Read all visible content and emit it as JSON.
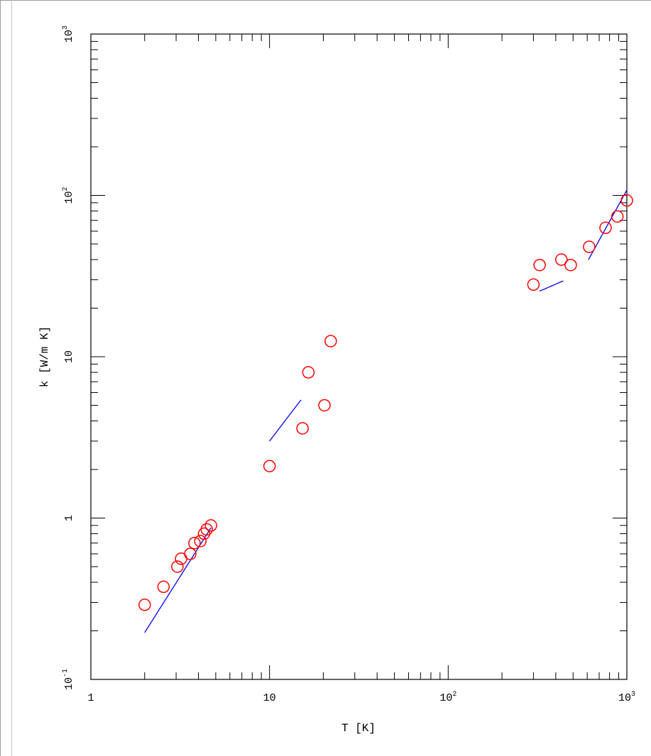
{
  "chart_data": {
    "type": "scatter",
    "xlabel": "T [K]",
    "ylabel": "k [W/m K]",
    "xscale": "log",
    "yscale": "log",
    "xlim": [
      1,
      1000
    ],
    "ylim": [
      0.1,
      1000
    ],
    "grid": false,
    "x_tick_labels": [
      {
        "value": 1,
        "mantissa": "1",
        "exp": ""
      },
      {
        "value": 10,
        "mantissa": "10",
        "exp": ""
      },
      {
        "value": 100,
        "mantissa": "10",
        "exp": "2"
      },
      {
        "value": 1000,
        "mantissa": "10",
        "exp": "3"
      }
    ],
    "y_tick_labels": [
      {
        "value": 0.1,
        "mantissa": "10",
        "exp": "-1"
      },
      {
        "value": 1,
        "mantissa": "1",
        "exp": ""
      },
      {
        "value": 10,
        "mantissa": "10",
        "exp": ""
      },
      {
        "value": 100,
        "mantissa": "10",
        "exp": "2"
      },
      {
        "value": 1000,
        "mantissa": "10",
        "exp": "3"
      }
    ],
    "series": [
      {
        "marker": "open-circle",
        "color": "#ff0000",
        "points": [
          [
            2.0,
            0.29
          ],
          [
            2.55,
            0.375
          ],
          [
            3.05,
            0.5
          ],
          [
            3.2,
            0.56
          ],
          [
            3.6,
            0.6
          ],
          [
            3.8,
            0.7
          ],
          [
            4.1,
            0.72
          ],
          [
            4.3,
            0.8
          ],
          [
            4.45,
            0.85
          ],
          [
            4.7,
            0.9
          ],
          [
            10.0,
            2.1
          ],
          [
            15.3,
            3.6
          ],
          [
            16.5,
            8.0
          ],
          [
            20.3,
            5.0
          ],
          [
            22.0,
            12.5
          ],
          [
            300,
            28.0
          ],
          [
            325,
            37.0
          ],
          [
            430,
            40.0
          ],
          [
            485,
            37.0
          ],
          [
            615,
            48.0
          ],
          [
            760,
            63.0
          ],
          [
            885,
            74.0
          ],
          [
            1000,
            93.0
          ]
        ]
      },
      {
        "marker": "line",
        "color": "#0000ff",
        "segments": [
          [
            [
              2.0,
              0.195
            ],
            [
              4.7,
              0.87
            ]
          ],
          [
            [
              10.0,
              3.0
            ],
            [
              15.0,
              5.4
            ]
          ],
          [
            [
              325,
              25.5
            ],
            [
              440,
              29.5
            ]
          ],
          [
            [
              610,
              40.0
            ],
            [
              1000,
              108.0
            ]
          ]
        ]
      }
    ]
  }
}
